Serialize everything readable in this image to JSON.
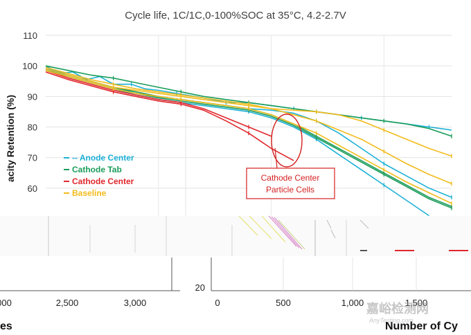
{
  "chart_data": {
    "type": "line",
    "title": "Cycle life, 1C/1C,0-100%SOC at 35°C, 4.2-2.7V",
    "ylabel": "Capacity Retention (%)",
    "ylabel_visible": "acity Retention (%)",
    "xlabel": "",
    "ylim": [
      50,
      110
    ],
    "yticks": [
      "110",
      "100",
      "90",
      "80",
      "70",
      "60"
    ],
    "xlim": [
      0,
      1800
    ],
    "grid": true,
    "legend_position": "middle-left",
    "annotation": {
      "lines": [
        "Cathode Center",
        "Particle Cells"
      ],
      "color": "#d42020",
      "highlight_center": {
        "x": 420,
        "y": 74
      }
    },
    "series": [
      {
        "name": "Anode Center",
        "legend_label": "-- Anode Center",
        "color": "#1cb1d6",
        "curves": [
          {
            "x": [
              0,
              60,
              120,
              180,
              240,
              300,
              380,
              440,
              500,
              580,
              660,
              740,
              800,
              900,
              1000,
              1100,
              1200,
              1300,
              1400,
              1500,
              1600,
              1700,
              1800
            ],
            "y": [
              100,
              97.5,
              98,
              95.5,
              96.5,
              94,
              94,
              92.5,
              92,
              91,
              90,
              89,
              88,
              88,
              87,
              86,
              85,
              84,
              83,
              82,
              81,
              80,
              79
            ]
          },
          {
            "x": [
              0,
              100,
              200,
              300,
              400,
              480,
              600,
              700,
              800,
              900,
              1000,
              1100,
              1200,
              1300,
              1400,
              1500,
              1600,
              1700,
              1800
            ],
            "y": [
              99.5,
              97,
              95,
              93,
              91,
              90,
              89,
              88,
              87,
              86,
              85.5,
              84.5,
              82,
              78,
              73,
              68,
              64,
              60,
              57
            ]
          },
          {
            "x": [
              0,
              100,
              200,
              300,
              400,
              500,
              600,
              700,
              800,
              900,
              1000,
              1100,
              1200,
              1300,
              1400,
              1500,
              1600,
              1700
            ],
            "y": [
              99,
              96.5,
              94.5,
              92.5,
              90.5,
              89,
              88,
              87,
              86,
              85,
              83,
              80,
              76,
              71,
              66,
              61,
              56,
              51
            ]
          }
        ]
      },
      {
        "name": "Cathode Tab",
        "legend_label": "Cathode Tab",
        "color": "#1a9c5a",
        "curves": [
          {
            "x": [
              0,
              100,
              200,
              300,
              400,
              500,
              600,
              700,
              800,
              900,
              1000,
              1100,
              1200,
              1300,
              1400,
              1500,
              1600,
              1700,
              1800
            ],
            "y": [
              100,
              98.5,
              97,
              96,
              94.5,
              93,
              91.5,
              90,
              89,
              88,
              87,
              86,
              85,
              84,
              83,
              82,
              81,
              79.5,
              77
            ]
          },
          {
            "x": [
              0,
              100,
              200,
              300,
              400,
              500,
              600,
              700,
              800,
              900,
              1000,
              1100,
              1200,
              1300,
              1400,
              1500,
              1600,
              1700,
              1800
            ],
            "y": [
              99,
              97,
              95,
              93,
              91.5,
              90,
              89,
              88,
              87,
              86,
              84,
              81,
              77,
              73,
              69,
              65,
              61,
              57,
              54
            ]
          },
          {
            "x": [
              0,
              100,
              200,
              300,
              400,
              500,
              600,
              700,
              800,
              900,
              1000,
              1100,
              1200,
              1300,
              1400,
              1500,
              1600,
              1700,
              1800
            ],
            "y": [
              98.5,
              96.5,
              94.5,
              92.5,
              91,
              89.5,
              88.5,
              87.5,
              86.5,
              85.5,
              83.5,
              80.5,
              76.5,
              72.5,
              68.5,
              64.5,
              60.5,
              56.5,
              53.5
            ]
          }
        ]
      },
      {
        "name": "Cathode Center",
        "legend_label": "Cathode Center",
        "color": "#e0262b",
        "curves": [
          {
            "x": [
              0,
              100,
              200,
              300,
              400,
              500,
              600,
              700,
              800,
              900,
              1000
            ],
            "y": [
              98.5,
              96,
              94,
              92,
              90.5,
              89,
              88,
              86,
              83,
              80,
              77
            ]
          },
          {
            "x": [
              0,
              100,
              200,
              300,
              400,
              500,
              600,
              700,
              800,
              900,
              1000,
              1100
            ],
            "y": [
              98,
              95.5,
              93.5,
              91.5,
              90,
              88.5,
              87.5,
              85.5,
              82,
              78,
              73,
              69
            ]
          }
        ]
      },
      {
        "name": "Baseline",
        "legend_label": "Baseline",
        "color": "#f2bb1a",
        "curves": [
          {
            "x": [
              0,
              100,
              200,
              300,
              400,
              500,
              600,
              700,
              800,
              900,
              1000,
              1100,
              1200,
              1300,
              1400,
              1500,
              1600,
              1700,
              1800
            ],
            "y": [
              99,
              97,
              95,
              93,
              92,
              91,
              90,
              89,
              88,
              87,
              86,
              85.5,
              85,
              84,
              82,
              79,
              76,
              73,
              70.5
            ]
          },
          {
            "x": [
              0,
              100,
              200,
              300,
              400,
              500,
              600,
              700,
              800,
              900,
              1000,
              1100,
              1200,
              1300,
              1400,
              1500,
              1600,
              1700,
              1800
            ],
            "y": [
              99.5,
              97.5,
              95.5,
              94,
              92.5,
              91.5,
              90.5,
              89.5,
              88.5,
              87.5,
              86,
              84,
              82,
              79,
              76,
              72,
              68,
              64.5,
              61.5
            ]
          },
          {
            "x": [
              0,
              100,
              200,
              300,
              400,
              500,
              600,
              700,
              800,
              900,
              1000,
              1100,
              1200,
              1300,
              1400,
              1500,
              1600,
              1700,
              1800
            ],
            "y": [
              98.5,
              96.5,
              94.5,
              92.5,
              91,
              90,
              89,
              88,
              87,
              86,
              84,
              81,
              78,
              74,
              70,
              66,
              62,
              58.5,
              55
            ]
          }
        ]
      }
    ],
    "lower_left_panel": {
      "xticks": [
        "000",
        "2,500",
        "3,000"
      ],
      "xlabel_fragment": "es"
    },
    "lower_right_panel": {
      "yticks": [
        "20"
      ],
      "xticks": [
        "0",
        "500",
        "1,000",
        "1,500"
      ],
      "xlabel_fragment": "Number of Cy"
    }
  },
  "watermark": {
    "text": "嘉峪检测网",
    "subtext": "AnyTesting.com"
  }
}
